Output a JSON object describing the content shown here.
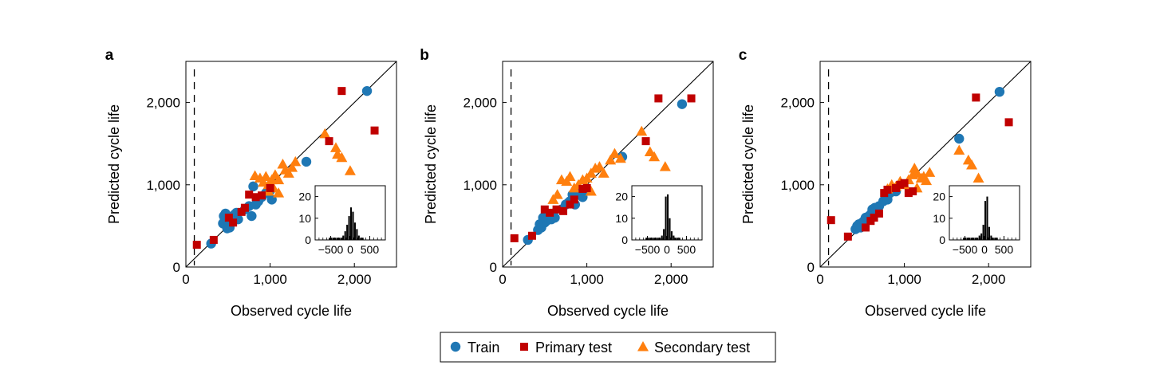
{
  "colors": {
    "train": "#1f77b4",
    "primary": "#c00000",
    "secondary": "#ff7f0e",
    "axis": "#000000"
  },
  "legend": {
    "placement": "bottom-center",
    "items": [
      {
        "label": "Train",
        "marker": "circle",
        "color": "#1f77b4"
      },
      {
        "label": "Primary test",
        "marker": "square",
        "color": "#c00000"
      },
      {
        "label": "Secondary test",
        "marker": "triangle",
        "color": "#ff7f0e"
      }
    ]
  },
  "chart_data": [
    {
      "type": "scatter",
      "panel_label": "a",
      "xlabel": "Observed cycle life",
      "ylabel": "Predicted cycle life",
      "xlim": [
        0,
        2500
      ],
      "ylim": [
        0,
        2500
      ],
      "xticks": [
        0,
        1000,
        2000
      ],
      "yticks": [
        0,
        1000,
        2000
      ],
      "xtick_labels": [
        "0",
        "1,000",
        "2,000"
      ],
      "ytick_labels": [
        "0",
        "1,000",
        "2,000"
      ],
      "reference_line": "y = x",
      "dashed_vline_x": 100,
      "series": [
        {
          "name": "Train",
          "marker": "circle",
          "points": [
            [
              300,
              285
            ],
            [
              440,
              530
            ],
            [
              460,
              560
            ],
            [
              480,
              510
            ],
            [
              500,
              560
            ],
            [
              520,
              580
            ],
            [
              540,
              600
            ],
            [
              560,
              620
            ],
            [
              520,
              480
            ],
            [
              580,
              640
            ],
            [
              600,
              660
            ],
            [
              470,
              650
            ],
            [
              490,
              470
            ],
            [
              620,
              580
            ],
            [
              700,
              700
            ],
            [
              750,
              740
            ],
            [
              780,
              620
            ],
            [
              800,
              980
            ],
            [
              830,
              760
            ],
            [
              860,
              800
            ],
            [
              900,
              850
            ],
            [
              950,
              900
            ],
            [
              1000,
              930
            ],
            [
              1020,
              820
            ],
            [
              450,
              620
            ],
            [
              1430,
              1280
            ],
            [
              2150,
              2140
            ]
          ]
        },
        {
          "name": "Primary test",
          "marker": "square",
          "points": [
            [
              130,
              270
            ],
            [
              330,
              330
            ],
            [
              510,
              600
            ],
            [
              560,
              540
            ],
            [
              660,
              670
            ],
            [
              700,
              720
            ],
            [
              750,
              880
            ],
            [
              830,
              850
            ],
            [
              900,
              870
            ],
            [
              1000,
              960
            ],
            [
              1700,
              1530
            ],
            [
              1850,
              2140
            ],
            [
              2240,
              1660
            ]
          ]
        },
        {
          "name": "Secondary test",
          "marker": "triangle",
          "points": [
            [
              820,
              1110
            ],
            [
              880,
              1080
            ],
            [
              920,
              1030
            ],
            [
              950,
              1100
            ],
            [
              980,
              1000
            ],
            [
              1020,
              1060
            ],
            [
              1060,
              1120
            ],
            [
              1100,
              1060
            ],
            [
              1150,
              1250
            ],
            [
              1180,
              1180
            ],
            [
              1220,
              1140
            ],
            [
              1260,
              1210
            ],
            [
              1300,
              1280
            ],
            [
              1100,
              900
            ],
            [
              1040,
              960
            ],
            [
              980,
              920
            ],
            [
              1650,
              1620
            ],
            [
              1780,
              1450
            ],
            [
              1800,
              1370
            ],
            [
              1850,
              1330
            ],
            [
              1950,
              1170
            ]
          ]
        }
      ],
      "inset": {
        "type": "histogram",
        "xlim": [
          -900,
          900
        ],
        "ylim": [
          0,
          25
        ],
        "xticks": [
          -500,
          0,
          500
        ],
        "yticks": [
          0,
          10,
          20
        ],
        "xtick_labels": [
          "−500",
          "0",
          "500"
        ],
        "ytick_labels": [
          "0",
          "10",
          "20"
        ],
        "bin_centers": [
          -525,
          -475,
          -425,
          -375,
          -325,
          -275,
          -225,
          -175,
          -125,
          -75,
          -25,
          25,
          75,
          125,
          175,
          225,
          275,
          325
        ],
        "counts": [
          1,
          1,
          1,
          1,
          1,
          1,
          1,
          2,
          4,
          7,
          11,
          15,
          13,
          8,
          5,
          2,
          1,
          1
        ]
      }
    },
    {
      "type": "scatter",
      "panel_label": "b",
      "xlabel": "Observed cycle life",
      "ylabel": "Predicted cycle life",
      "xlim": [
        0,
        2500
      ],
      "ylim": [
        0,
        2500
      ],
      "xticks": [
        0,
        1000,
        2000
      ],
      "yticks": [
        0,
        1000,
        2000
      ],
      "xtick_labels": [
        "0",
        "1,000",
        "2,000"
      ],
      "ytick_labels": [
        "0",
        "1,000",
        "2,000"
      ],
      "reference_line": "y = x",
      "dashed_vline_x": 100,
      "series": [
        {
          "name": "Train",
          "marker": "circle",
          "points": [
            [
              300,
              330
            ],
            [
              420,
              450
            ],
            [
              440,
              520
            ],
            [
              460,
              480
            ],
            [
              480,
              600
            ],
            [
              500,
              540
            ],
            [
              520,
              560
            ],
            [
              540,
              600
            ],
            [
              560,
              620
            ],
            [
              580,
              580
            ],
            [
              600,
              650
            ],
            [
              620,
              600
            ],
            [
              700,
              700
            ],
            [
              750,
              760
            ],
            [
              780,
              780
            ],
            [
              800,
              800
            ],
            [
              830,
              880
            ],
            [
              860,
              760
            ],
            [
              900,
              920
            ],
            [
              950,
              850
            ],
            [
              980,
              940
            ],
            [
              1420,
              1340
            ],
            [
              2130,
              1980
            ]
          ]
        },
        {
          "name": "Primary test",
          "marker": "square",
          "points": [
            [
              140,
              350
            ],
            [
              350,
              380
            ],
            [
              500,
              700
            ],
            [
              560,
              660
            ],
            [
              640,
              700
            ],
            [
              720,
              680
            ],
            [
              800,
              760
            ],
            [
              850,
              820
            ],
            [
              950,
              950
            ],
            [
              1000,
              960
            ],
            [
              1700,
              1530
            ],
            [
              1850,
              2050
            ],
            [
              2240,
              2050
            ]
          ]
        },
        {
          "name": "Secondary test",
          "marker": "triangle",
          "points": [
            [
              700,
              1060
            ],
            [
              760,
              1040
            ],
            [
              800,
              1100
            ],
            [
              850,
              960
            ],
            [
              900,
              1000
            ],
            [
              950,
              1060
            ],
            [
              1000,
              1080
            ],
            [
              1050,
              1140
            ],
            [
              1100,
              1200
            ],
            [
              1150,
              1220
            ],
            [
              1200,
              1140
            ],
            [
              1280,
              1300
            ],
            [
              1330,
              1380
            ],
            [
              1400,
              1320
            ],
            [
              600,
              820
            ],
            [
              650,
              880
            ],
            [
              1050,
              920
            ],
            [
              1650,
              1650
            ],
            [
              1750,
              1400
            ],
            [
              1800,
              1340
            ],
            [
              1930,
              1220
            ]
          ]
        }
      ],
      "inset": {
        "type": "histogram",
        "xlim": [
          -900,
          900
        ],
        "ylim": [
          0,
          25
        ],
        "xticks": [
          -500,
          0,
          500
        ],
        "yticks": [
          0,
          10,
          20
        ],
        "xtick_labels": [
          "−500",
          "0",
          "500"
        ],
        "ytick_labels": [
          "0",
          "10",
          "20"
        ],
        "bin_centers": [
          -525,
          -475,
          -425,
          -375,
          -325,
          -275,
          -225,
          -175,
          -125,
          -75,
          -25,
          25,
          75,
          125,
          175,
          225,
          275,
          325
        ],
        "counts": [
          1,
          1,
          1,
          1,
          1,
          1,
          1,
          1,
          2,
          5,
          20,
          21,
          10,
          4,
          2,
          1,
          1,
          1
        ]
      }
    },
    {
      "type": "scatter",
      "panel_label": "c",
      "xlabel": "Observed cycle life",
      "ylabel": "Predicted cycle life",
      "xlim": [
        0,
        2500
      ],
      "ylim": [
        0,
        2500
      ],
      "xticks": [
        0,
        1000,
        2000
      ],
      "yticks": [
        0,
        1000,
        2000
      ],
      "xtick_labels": [
        "0",
        "1,000",
        "2,000"
      ],
      "ytick_labels": [
        "0",
        "1,000",
        "2,000"
      ],
      "reference_line": "y = x",
      "dashed_vline_x": 100,
      "series": [
        {
          "name": "Train",
          "marker": "circle",
          "points": [
            [
              420,
              460
            ],
            [
              440,
              500
            ],
            [
              460,
              520
            ],
            [
              480,
              480
            ],
            [
              500,
              540
            ],
            [
              520,
              560
            ],
            [
              540,
              600
            ],
            [
              560,
              580
            ],
            [
              580,
              620
            ],
            [
              600,
              640
            ],
            [
              620,
              700
            ],
            [
              650,
              720
            ],
            [
              700,
              740
            ],
            [
              750,
              800
            ],
            [
              780,
              860
            ],
            [
              800,
              820
            ],
            [
              830,
              900
            ],
            [
              860,
              960
            ],
            [
              900,
              920
            ],
            [
              1650,
              1560
            ],
            [
              2130,
              2130
            ]
          ]
        },
        {
          "name": "Primary test",
          "marker": "square",
          "points": [
            [
              130,
              570
            ],
            [
              330,
              370
            ],
            [
              540,
              480
            ],
            [
              600,
              560
            ],
            [
              640,
              600
            ],
            [
              700,
              650
            ],
            [
              760,
              900
            ],
            [
              800,
              940
            ],
            [
              900,
              960
            ],
            [
              950,
              1000
            ],
            [
              1000,
              1020
            ],
            [
              1050,
              900
            ],
            [
              1100,
              920
            ],
            [
              1850,
              2060
            ],
            [
              2240,
              1760
            ]
          ]
        },
        {
          "name": "Secondary test",
          "marker": "triangle",
          "points": [
            [
              800,
              950
            ],
            [
              850,
              1000
            ],
            [
              900,
              980
            ],
            [
              950,
              1040
            ],
            [
              1000,
              1000
            ],
            [
              1050,
              1060
            ],
            [
              1100,
              1120
            ],
            [
              1120,
              1200
            ],
            [
              1150,
              1140
            ],
            [
              1200,
              1080
            ],
            [
              1230,
              1100
            ],
            [
              1260,
              1050
            ],
            [
              1300,
              1150
            ],
            [
              1150,
              960
            ],
            [
              1650,
              1420
            ],
            [
              1760,
              1300
            ],
            [
              1800,
              1240
            ],
            [
              1880,
              1080
            ]
          ]
        }
      ],
      "inset": {
        "type": "histogram",
        "xlim": [
          -900,
          900
        ],
        "ylim": [
          0,
          25
        ],
        "xticks": [
          -500,
          0,
          500
        ],
        "yticks": [
          0,
          10,
          20
        ],
        "xtick_labels": [
          "−500",
          "0",
          "500"
        ],
        "ytick_labels": [
          "0",
          "10",
          "20"
        ],
        "bin_centers": [
          -525,
          -475,
          -425,
          -375,
          -325,
          -275,
          -225,
          -175,
          -125,
          -75,
          -25,
          25,
          75,
          125,
          175,
          225,
          275,
          325
        ],
        "counts": [
          1,
          1,
          1,
          1,
          1,
          1,
          1,
          1,
          2,
          3,
          7,
          18,
          20,
          6,
          2,
          1,
          1,
          1
        ]
      }
    }
  ]
}
